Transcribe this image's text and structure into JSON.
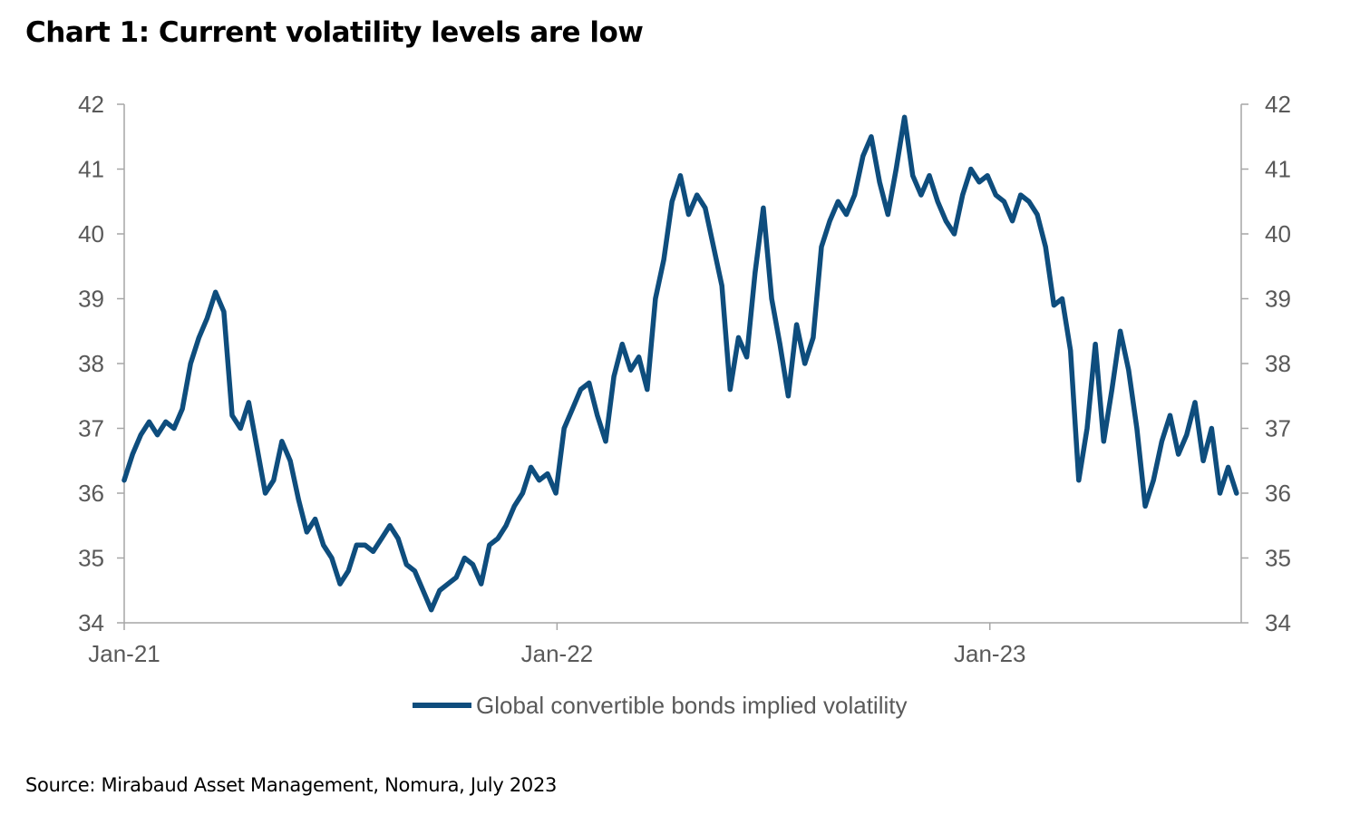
{
  "title": "Chart 1: Current volatility levels are low",
  "source": "Source: Mirabaud Asset Management, Nomura, July 2023",
  "chart_data": {
    "type": "line",
    "xlabel": "",
    "ylabel": "",
    "ylim": [
      34,
      42
    ],
    "yticks": [
      "34",
      "35",
      "36",
      "37",
      "38",
      "39",
      "40",
      "41",
      "42"
    ],
    "secondary_axis": {
      "ylim": [
        34,
        42
      ],
      "yticks": [
        "34",
        "35",
        "36",
        "37",
        "38",
        "39",
        "40",
        "41",
        "42"
      ]
    },
    "x_ticks": [
      "Jan-21",
      "Jan-22",
      "Jan-23"
    ],
    "xlim": [
      "2021-01-01",
      "2023-08-01"
    ],
    "grid": false,
    "legend_position": "bottom",
    "color": "#0E4D7D",
    "series": [
      {
        "name": "Global convertible bonds implied volatility",
        "points": [
          [
            "2021-01-01",
            36.2
          ],
          [
            "2021-01-08",
            36.6
          ],
          [
            "2021-01-15",
            36.9
          ],
          [
            "2021-01-22",
            37.1
          ],
          [
            "2021-01-29",
            36.9
          ],
          [
            "2021-02-05",
            37.1
          ],
          [
            "2021-02-12",
            37.0
          ],
          [
            "2021-02-19",
            37.3
          ],
          [
            "2021-02-26",
            38.0
          ],
          [
            "2021-03-05",
            38.4
          ],
          [
            "2021-03-12",
            38.7
          ],
          [
            "2021-03-19",
            39.1
          ],
          [
            "2021-03-26",
            38.8
          ],
          [
            "2021-04-02",
            37.2
          ],
          [
            "2021-04-09",
            37.0
          ],
          [
            "2021-04-16",
            37.4
          ],
          [
            "2021-04-23",
            36.7
          ],
          [
            "2021-04-30",
            36.0
          ],
          [
            "2021-05-07",
            36.2
          ],
          [
            "2021-05-14",
            36.8
          ],
          [
            "2021-05-21",
            36.5
          ],
          [
            "2021-05-28",
            35.9
          ],
          [
            "2021-06-04",
            35.4
          ],
          [
            "2021-06-11",
            35.6
          ],
          [
            "2021-06-18",
            35.2
          ],
          [
            "2021-06-25",
            35.0
          ],
          [
            "2021-07-02",
            34.6
          ],
          [
            "2021-07-09",
            34.8
          ],
          [
            "2021-07-16",
            35.2
          ],
          [
            "2021-07-23",
            35.2
          ],
          [
            "2021-07-30",
            35.1
          ],
          [
            "2021-08-06",
            35.3
          ],
          [
            "2021-08-13",
            35.5
          ],
          [
            "2021-08-20",
            35.3
          ],
          [
            "2021-08-27",
            34.9
          ],
          [
            "2021-09-03",
            34.8
          ],
          [
            "2021-09-10",
            34.5
          ],
          [
            "2021-09-17",
            34.2
          ],
          [
            "2021-09-24",
            34.5
          ],
          [
            "2021-10-01",
            34.6
          ],
          [
            "2021-10-08",
            34.7
          ],
          [
            "2021-10-15",
            35.0
          ],
          [
            "2021-10-22",
            34.9
          ],
          [
            "2021-10-29",
            34.6
          ],
          [
            "2021-11-05",
            35.2
          ],
          [
            "2021-11-12",
            35.3
          ],
          [
            "2021-11-19",
            35.5
          ],
          [
            "2021-11-26",
            35.8
          ],
          [
            "2021-12-03",
            36.0
          ],
          [
            "2021-12-10",
            36.4
          ],
          [
            "2021-12-17",
            36.2
          ],
          [
            "2021-12-24",
            36.3
          ],
          [
            "2021-12-31",
            36.0
          ],
          [
            "2022-01-07",
            37.0
          ],
          [
            "2022-01-14",
            37.3
          ],
          [
            "2022-01-21",
            37.6
          ],
          [
            "2022-01-28",
            37.7
          ],
          [
            "2022-02-04",
            37.2
          ],
          [
            "2022-02-11",
            36.8
          ],
          [
            "2022-02-18",
            37.8
          ],
          [
            "2022-02-25",
            38.3
          ],
          [
            "2022-03-04",
            37.9
          ],
          [
            "2022-03-11",
            38.1
          ],
          [
            "2022-03-18",
            37.6
          ],
          [
            "2022-03-25",
            39.0
          ],
          [
            "2022-04-01",
            39.6
          ],
          [
            "2022-04-08",
            40.5
          ],
          [
            "2022-04-15",
            40.9
          ],
          [
            "2022-04-22",
            40.3
          ],
          [
            "2022-04-29",
            40.6
          ],
          [
            "2022-05-06",
            40.4
          ],
          [
            "2022-05-13",
            39.8
          ],
          [
            "2022-05-20",
            39.2
          ],
          [
            "2022-05-27",
            37.6
          ],
          [
            "2022-06-03",
            38.4
          ],
          [
            "2022-06-10",
            38.1
          ],
          [
            "2022-06-17",
            39.4
          ],
          [
            "2022-06-24",
            40.4
          ],
          [
            "2022-07-01",
            39.0
          ],
          [
            "2022-07-08",
            38.3
          ],
          [
            "2022-07-15",
            37.5
          ],
          [
            "2022-07-22",
            38.6
          ],
          [
            "2022-07-29",
            38.0
          ],
          [
            "2022-08-05",
            38.4
          ],
          [
            "2022-08-12",
            39.8
          ],
          [
            "2022-08-19",
            40.2
          ],
          [
            "2022-08-26",
            40.5
          ],
          [
            "2022-09-02",
            40.3
          ],
          [
            "2022-09-09",
            40.6
          ],
          [
            "2022-09-16",
            41.2
          ],
          [
            "2022-09-23",
            41.5
          ],
          [
            "2022-09-30",
            40.8
          ],
          [
            "2022-10-07",
            40.3
          ],
          [
            "2022-10-14",
            41.0
          ],
          [
            "2022-10-21",
            41.8
          ],
          [
            "2022-10-28",
            40.9
          ],
          [
            "2022-11-04",
            40.6
          ],
          [
            "2022-11-11",
            40.9
          ],
          [
            "2022-11-18",
            40.5
          ],
          [
            "2022-11-25",
            40.2
          ],
          [
            "2022-12-02",
            40.0
          ],
          [
            "2022-12-09",
            40.6
          ],
          [
            "2022-12-16",
            41.0
          ],
          [
            "2022-12-23",
            40.8
          ],
          [
            "2022-12-30",
            40.9
          ],
          [
            "2023-01-06",
            40.6
          ],
          [
            "2023-01-13",
            40.5
          ],
          [
            "2023-01-20",
            40.2
          ],
          [
            "2023-01-27",
            40.6
          ],
          [
            "2023-02-03",
            40.5
          ],
          [
            "2023-02-10",
            40.3
          ],
          [
            "2023-02-17",
            39.8
          ],
          [
            "2023-02-24",
            38.9
          ],
          [
            "2023-03-03",
            39.0
          ],
          [
            "2023-03-10",
            38.2
          ],
          [
            "2023-03-17",
            36.2
          ],
          [
            "2023-03-24",
            37.0
          ],
          [
            "2023-03-31",
            38.3
          ],
          [
            "2023-04-07",
            36.8
          ],
          [
            "2023-04-14",
            37.6
          ],
          [
            "2023-04-21",
            38.5
          ],
          [
            "2023-04-28",
            37.9
          ],
          [
            "2023-05-05",
            37.0
          ],
          [
            "2023-05-12",
            35.8
          ],
          [
            "2023-05-19",
            36.2
          ],
          [
            "2023-05-26",
            36.8
          ],
          [
            "2023-06-02",
            37.2
          ],
          [
            "2023-06-09",
            36.6
          ],
          [
            "2023-06-16",
            36.9
          ],
          [
            "2023-06-23",
            37.4
          ],
          [
            "2023-06-30",
            36.5
          ],
          [
            "2023-07-07",
            37.0
          ],
          [
            "2023-07-14",
            36.0
          ],
          [
            "2023-07-21",
            36.4
          ],
          [
            "2023-07-28",
            36.0
          ]
        ]
      }
    ]
  }
}
